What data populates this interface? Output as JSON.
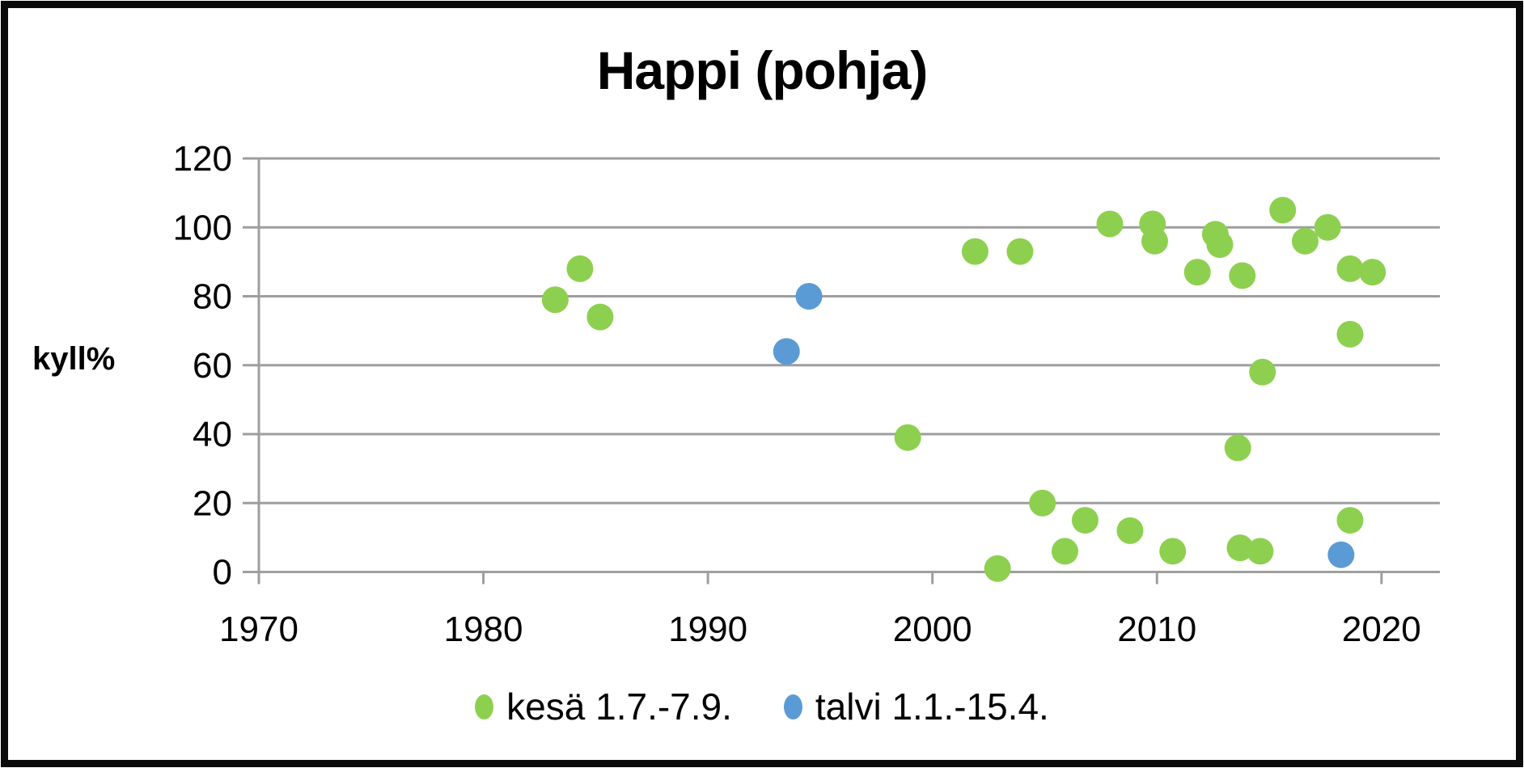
{
  "title": "Happi (pohja)",
  "y_axis_label": "kyll%",
  "legend": [
    {
      "label": "kesä 1.7.-7.9.",
      "series_key": "kesa",
      "color": "#8DD04F"
    },
    {
      "label": "talvi 1.1.-15.4.",
      "series_key": "talvi",
      "color": "#5B9BD5"
    }
  ],
  "colors": {
    "summer_green": "#8DD04F",
    "winter_blue": "#5B9BD5",
    "gridline_gray": "#9E9E9E",
    "text_black": "#000000",
    "frame_black": "#0A0A0A"
  },
  "chart_data": {
    "type": "scatter",
    "title": "Happi (pohja)",
    "xlabel": "",
    "ylabel": "kyll%",
    "xlim": [
      1970,
      2022.6
    ],
    "ylim": [
      0,
      120
    ],
    "x_ticks": [
      1970,
      1980,
      1990,
      2000,
      2010,
      2020
    ],
    "y_ticks": [
      0,
      20,
      40,
      60,
      80,
      100,
      120
    ],
    "grid": "horizontal-only",
    "legend_position": "bottom",
    "marker": "circle",
    "series": [
      {
        "name": "kesä 1.7.-7.9.",
        "key": "kesa",
        "color": "#8DD04F",
        "points": [
          [
            1983.2,
            79
          ],
          [
            1984.3,
            88
          ],
          [
            1985.2,
            74
          ],
          [
            1998.9,
            39
          ],
          [
            2001.9,
            93
          ],
          [
            2002.9,
            1
          ],
          [
            2003.9,
            93
          ],
          [
            2004.9,
            20
          ],
          [
            2005.9,
            6
          ],
          [
            2006.8,
            15
          ],
          [
            2007.9,
            101
          ],
          [
            2008.8,
            12
          ],
          [
            2009.8,
            101
          ],
          [
            2009.9,
            96
          ],
          [
            2010.7,
            6
          ],
          [
            2011.8,
            87
          ],
          [
            2012.6,
            98
          ],
          [
            2012.8,
            95
          ],
          [
            2013.6,
            36
          ],
          [
            2013.7,
            7
          ],
          [
            2013.8,
            86
          ],
          [
            2014.6,
            6
          ],
          [
            2014.7,
            58
          ],
          [
            2015.6,
            105
          ],
          [
            2016.6,
            96
          ],
          [
            2017.6,
            100
          ],
          [
            2018.6,
            15
          ],
          [
            2018.6,
            69
          ],
          [
            2018.6,
            88
          ],
          [
            2019.6,
            87
          ]
        ]
      },
      {
        "name": "talvi 1.1.-15.4.",
        "key": "talvi",
        "color": "#5B9BD5",
        "points": [
          [
            1993.5,
            64
          ],
          [
            1994.5,
            80
          ],
          [
            2018.2,
            5
          ]
        ]
      }
    ]
  }
}
